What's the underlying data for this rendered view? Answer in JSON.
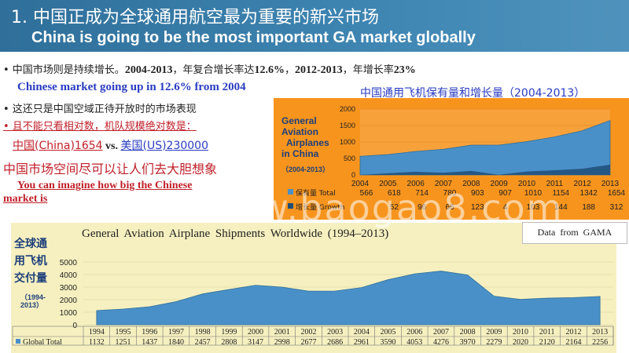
{
  "header": {
    "title_cn": "1. 中国正成为全球通用航空最为重要的新兴市场",
    "title_en": "China is going to be the most important GA market globally"
  },
  "left": {
    "bullet1_prefix": "• 中国市场则是持续增长。",
    "bullet1_years1": "2004-2013",
    "bullet1_mid1": "，年复合增长率达",
    "bullet1_rate1": "12.6%",
    "bullet1_mid2": "，",
    "bullet1_years2": "2012-2013",
    "bullet1_mid3": "，年增长率",
    "bullet1_rate2": "23%",
    "bullet1_en": "Chinese market going up in  12.6% from 2004",
    "bullet2": "• 这还只是中国空域正待开放时的市场表现",
    "bullet3": "• 且不能只看相对数，机队规模绝对数是：",
    "compare_cn": "中国(China)1654",
    "compare_vs": " vs. ",
    "compare_us": "美国(US)230000",
    "space_cn": "中国市场空间尽可以让人们去大胆想象",
    "imagine_line1": "You can imagine how big the Chinese",
    "imagine_line2": "market is"
  },
  "china_chart_box": {
    "title": "中国通用飞机保有量和增长量（2004-2013）",
    "label_l1": "General",
    "label_l2": "Aviation",
    "label_l3": "Airplanes",
    "label_l4": "in China",
    "label_years": "（2004-2013）",
    "row1_label": "保有量 Total",
    "row2_label": "增长量 Growth"
  },
  "gama_box": {
    "title": "General Aviation Airplane Shipments Worldwide (1994–2013)",
    "source": "Data from GAMA",
    "label_l1": "全球通",
    "label_l2": "用飞机",
    "label_l3": "交付量",
    "label_years_l1": "（1994-",
    "label_years_l2": "2013）",
    "row_label": "Global Total"
  },
  "watermark": "www.baogao8.com",
  "chart_data": [
    {
      "type": "area",
      "title": "中国通用飞机保有量和增长量（2004-2013）",
      "x": [
        "2004",
        "2005",
        "2006",
        "2007",
        "2008",
        "2009",
        "2010",
        "2011",
        "2012",
        "2013"
      ],
      "series": [
        {
          "name": "保有量 Total",
          "values": [
            566,
            618,
            714,
            780,
            903,
            907,
            1010,
            1154,
            1342,
            1654
          ]
        },
        {
          "name": "增长量 Growth",
          "values": [
            null,
            52,
            96,
            66,
            123,
            4,
            103,
            144,
            188,
            312
          ]
        }
      ],
      "ylim": [
        0,
        2000
      ],
      "yticks": [
        0,
        500,
        1000,
        1500,
        2000
      ],
      "color": "#4a90c8",
      "growth_color": "#1f4e79"
    },
    {
      "type": "area",
      "title": "General Aviation Airplane Shipments Worldwide (1994–2013)",
      "x": [
        "1994",
        "1995",
        "1996",
        "1997",
        "1998",
        "1999",
        "2000",
        "2001",
        "2002",
        "2003",
        "2004",
        "2005",
        "2006",
        "2007",
        "2008",
        "2009",
        "2010",
        "2011",
        "2012",
        "2013"
      ],
      "series": [
        {
          "name": "Global Total",
          "values": [
            1132,
            1251,
            1437,
            1840,
            2457,
            2808,
            3147,
            2998,
            2677,
            2686,
            2961,
            3590,
            4053,
            4276,
            3970,
            2279,
            2020,
            2120,
            2164,
            2256
          ]
        }
      ],
      "ylim": [
        0,
        5000
      ],
      "yticks": [
        0,
        1000,
        2000,
        3000,
        4000,
        5000
      ],
      "color": "#4a90c8"
    }
  ]
}
